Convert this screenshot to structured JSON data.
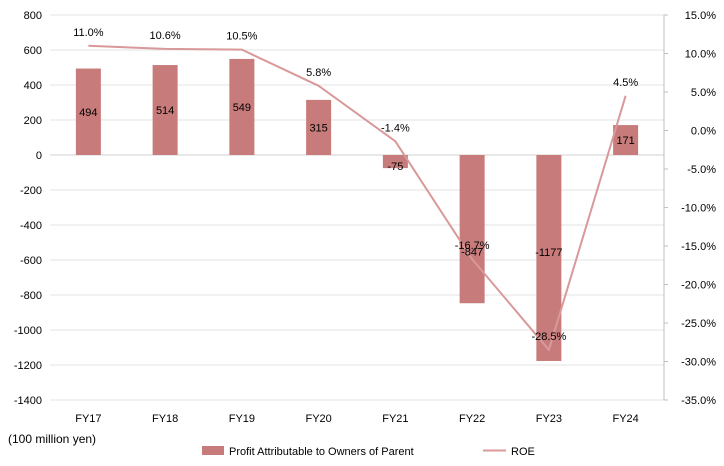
{
  "chart_data": {
    "type": "bar",
    "categories": [
      "FY17",
      "FY18",
      "FY19",
      "FY20",
      "FY21",
      "FY22",
      "FY23",
      "FY24"
    ],
    "series": [
      {
        "name": "Profit Attributable to Owners of Parent",
        "type": "bar",
        "axis": "left",
        "color": "#c77b7a",
        "values": [
          494,
          514,
          549,
          315,
          -75,
          -847,
          -1177,
          171
        ],
        "labels": [
          "494",
          "514",
          "549",
          "315",
          "-75",
          "-847",
          "-1177",
          "171"
        ]
      },
      {
        "name": "ROE",
        "type": "line",
        "axis": "right",
        "color": "#d9999a",
        "values": [
          11.0,
          10.6,
          10.5,
          5.8,
          -1.4,
          -16.7,
          -28.5,
          4.5
        ],
        "labels": [
          "11.0%",
          "10.6%",
          "10.5%",
          "5.8%",
          "-1.4%",
          "-16.7%",
          "-28.5%",
          "4.5%"
        ]
      }
    ],
    "y_left": {
      "range": [
        -1400,
        800
      ],
      "ticks": [
        "800",
        "600",
        "400",
        "200",
        "0",
        "-200",
        "-400",
        "-600",
        "-800",
        "-1000",
        "-1200",
        "-1400"
      ],
      "unit": "(100 million yen)"
    },
    "y_right": {
      "range": [
        -35,
        15
      ],
      "ticks": [
        "15.0%",
        "10.0%",
        "5.0%",
        "0.0%",
        "-5.0%",
        "-10.0%",
        "-15.0%",
        "-20.0%",
        "-25.0%",
        "-30.0%",
        "-35.0%"
      ]
    },
    "grid": true,
    "legend_position": "bottom"
  }
}
